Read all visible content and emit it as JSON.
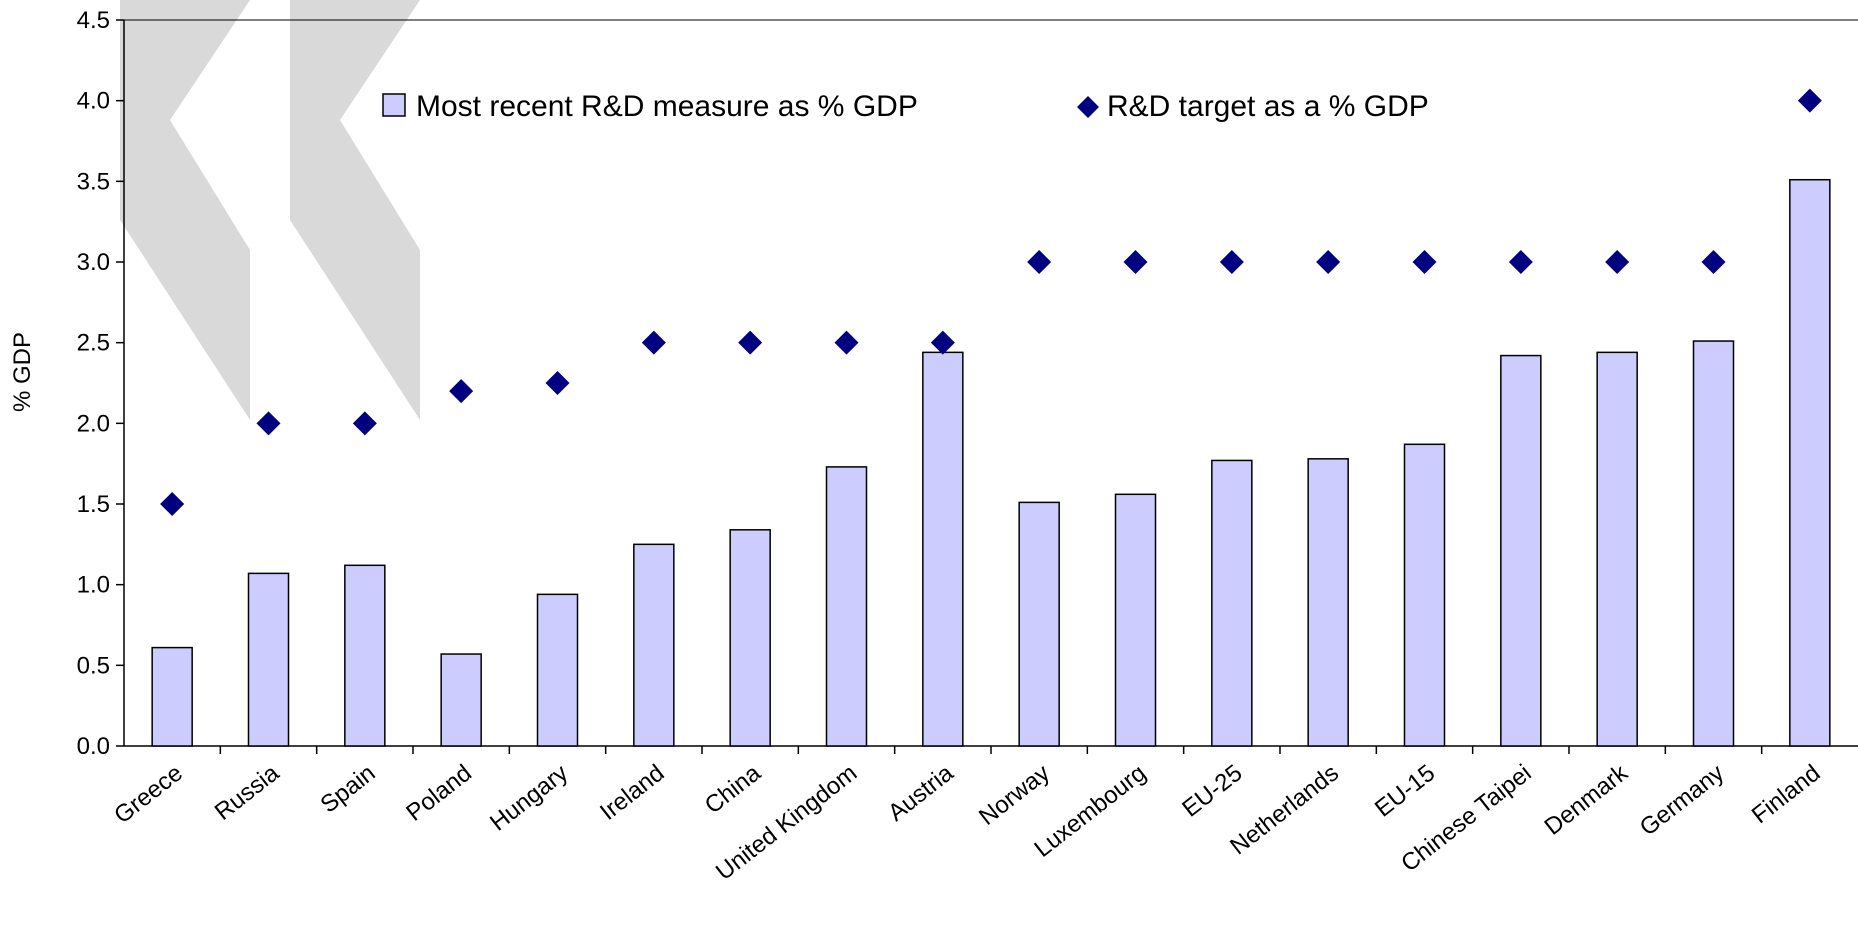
{
  "chart_data": {
    "type": "bar",
    "ylabel": "% GDP",
    "xlabel": "",
    "ylim": [
      0,
      4.5
    ],
    "yticks": [
      "0.0",
      "0.5",
      "1.0",
      "1.5",
      "2.0",
      "2.5",
      "3.0",
      "3.5",
      "4.0",
      "4.5"
    ],
    "categories": [
      "Greece",
      "Russia",
      "Spain",
      "Poland",
      "Hungary",
      "Ireland",
      "China",
      "United Kingdom",
      "Austria",
      "Norway",
      "Luxembourg",
      "EU-25",
      "Netherlands",
      "EU-15",
      "Chinese Taipei",
      "Denmark",
      "Germany",
      "Finland"
    ],
    "series": [
      {
        "name": "Most recent R&D measure as % GDP",
        "kind": "bar",
        "values": [
          0.61,
          1.07,
          1.12,
          0.57,
          0.94,
          1.25,
          1.34,
          1.73,
          2.44,
          1.51,
          1.56,
          1.77,
          1.78,
          1.87,
          2.42,
          2.44,
          2.51,
          3.51
        ]
      },
      {
        "name": "R&D target as a % GDP",
        "kind": "marker",
        "values": [
          1.5,
          2.0,
          2.0,
          2.2,
          2.25,
          2.5,
          2.5,
          2.5,
          2.5,
          3.0,
          3.0,
          3.0,
          3.0,
          3.0,
          3.0,
          3.0,
          3.0,
          4.0
        ]
      }
    ],
    "legend_position": "top",
    "grid": false,
    "colors": {
      "bar_fill": "#ccccff",
      "bar_stroke": "#000000",
      "marker_fill": "#000080",
      "watermark": "#d9d9d9"
    }
  }
}
